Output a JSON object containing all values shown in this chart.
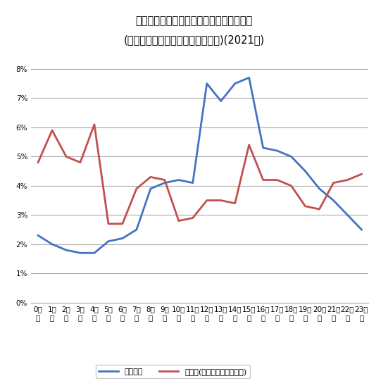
{
  "title1": "時間帯別出火件数および出火による死者数",
  "title2": "(時間明確分の全体数に占める割合)(2021年)",
  "x_labels": [
    "0時\n台",
    "1時\n台",
    "2時\n台",
    "3時\n台",
    "4時\n台",
    "5時\n台",
    "6時\n台",
    "7時\n台",
    "8時\n台",
    "9時\n台",
    "10時\n台",
    "11時\n台",
    "12時\n台",
    "13時\n台",
    "14時\n台",
    "15時\n台",
    "16時\n台",
    "17時\n台",
    "18時\n台",
    "19時\n台",
    "20時\n台",
    "21時\n台",
    "22時\n台",
    "23時\n台"
  ],
  "fire_count": [
    2.3,
    2.0,
    1.8,
    1.7,
    1.7,
    2.1,
    2.2,
    2.5,
    3.9,
    4.1,
    4.2,
    4.1,
    7.5,
    6.9,
    7.5,
    7.7,
    5.3,
    5.2,
    5.0,
    4.5,
    3.9,
    3.5,
    3.0,
    2.5
  ],
  "death_count": [
    4.8,
    5.9,
    5.0,
    4.8,
    6.1,
    2.7,
    2.7,
    3.9,
    4.3,
    4.2,
    2.8,
    2.9,
    3.5,
    3.5,
    3.4,
    5.4,
    4.2,
    4.2,
    4.0,
    3.3,
    3.2,
    4.1,
    4.2,
    4.4
  ],
  "fire_color": "#4472C4",
  "death_color": "#C0504D",
  "ylim": [
    0,
    8.5
  ],
  "yticks": [
    0,
    1,
    2,
    3,
    4,
    5,
    6,
    7,
    8
  ],
  "legend_fire": "出火件数",
  "legend_death": "死者数(放火・自殺など除く)",
  "background_color": "#FFFFFF",
  "plot_bg_color": "#FFFFFF",
  "grid_color": "#AAAAAA",
  "title_fontsize": 10.5,
  "label_fontsize": 7.5
}
